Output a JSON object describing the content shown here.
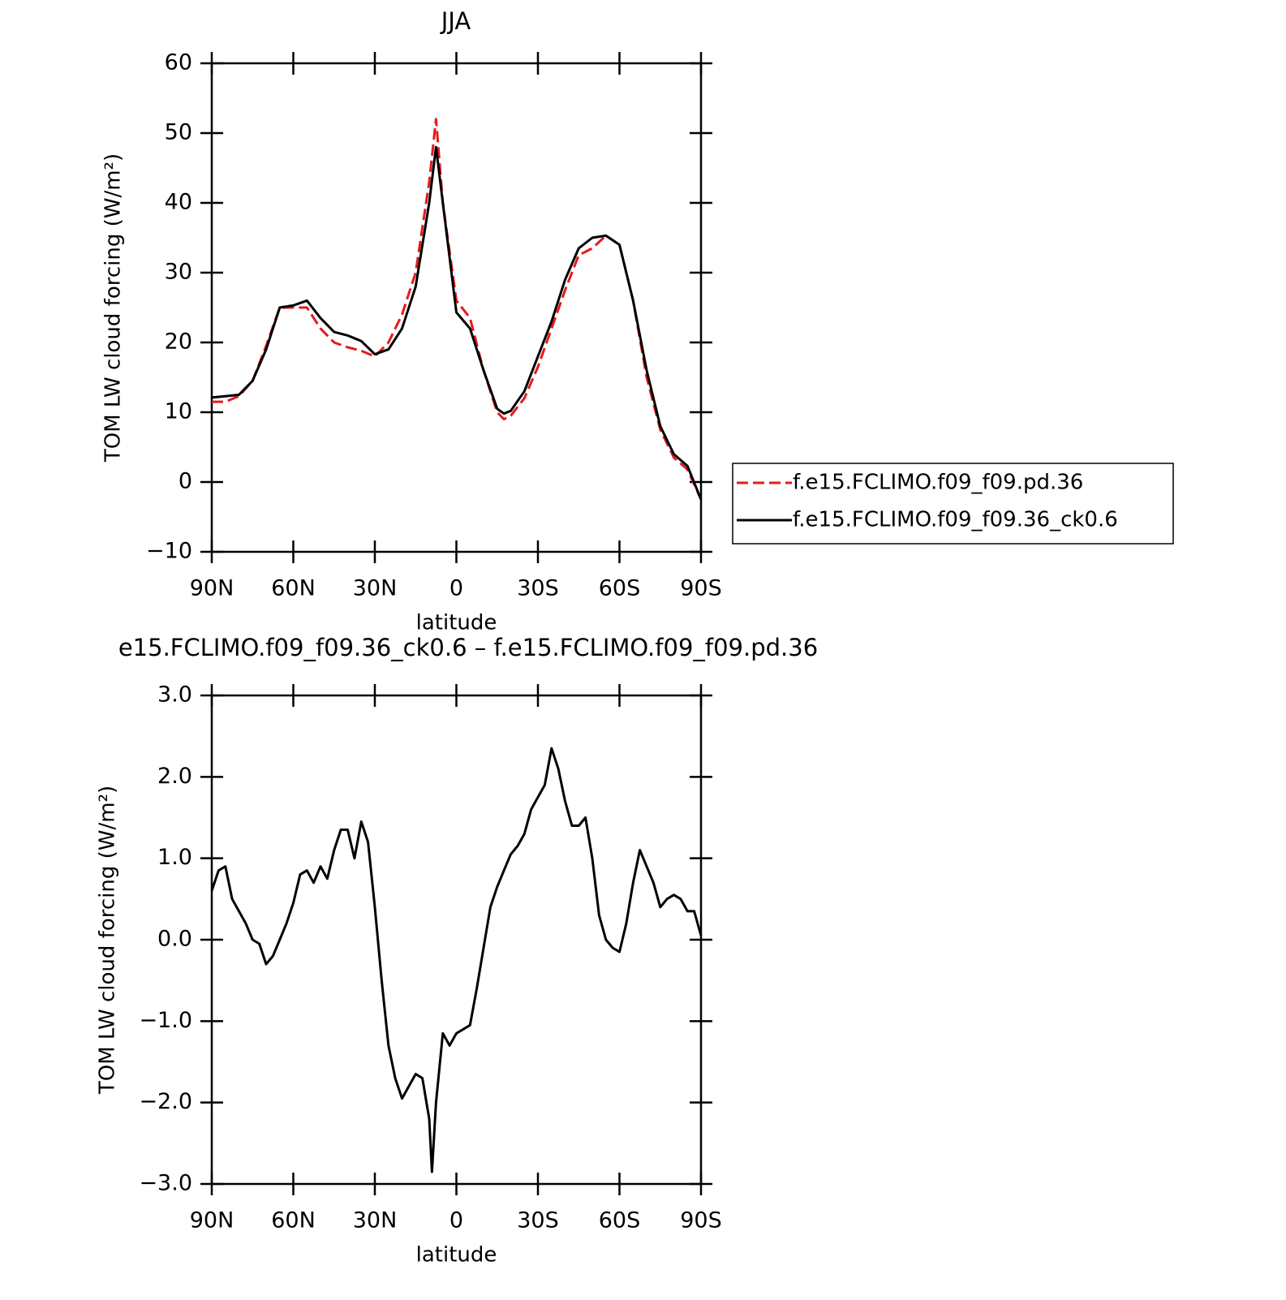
{
  "chart_data": [
    {
      "type": "line",
      "title": "JJA",
      "xlabel": "latitude",
      "ylabel": "TOM LW cloud forcing (W/m²)",
      "x": [
        90,
        85,
        80,
        75,
        70,
        65,
        60,
        55,
        50,
        45,
        40,
        35,
        30,
        25,
        20,
        15,
        10,
        7.5,
        5,
        0,
        -5,
        -10,
        -15,
        -17.5,
        -20,
        -25,
        -30,
        -35,
        -40,
        -45,
        -50,
        -55,
        -60,
        -65,
        -70,
        -75,
        -80,
        -85,
        -90
      ],
      "series": [
        {
          "name": "f.e15.FCLIMO.f09_f09.pd.36",
          "color": "#e41a1c",
          "style": "dashed",
          "values": [
            11.5,
            11.5,
            12.3,
            14.5,
            19.5,
            25,
            25,
            25,
            22,
            20,
            19.3,
            18.8,
            18,
            20,
            24,
            30,
            43,
            52,
            40,
            26,
            23.5,
            16,
            10,
            9,
            9.5,
            12,
            16.5,
            22,
            27.5,
            32.5,
            33.5,
            35.3,
            34,
            26,
            15,
            7.5,
            3.5,
            1.8,
            -2.5
          ]
        },
        {
          "name": "f.e15.FCLIMO.f09_f09.36_ck0.6",
          "color": "#000000",
          "style": "solid",
          "values": [
            12.1,
            12.3,
            12.5,
            14.5,
            19,
            25,
            25.3,
            26,
            23.5,
            21.5,
            21,
            20.2,
            18.3,
            19,
            22,
            28,
            40,
            48,
            40,
            24.3,
            22,
            16,
            10.5,
            9.8,
            10.2,
            13,
            18,
            23,
            29,
            33.5,
            35,
            35.3,
            34,
            26,
            16,
            8,
            4,
            2.3,
            -2.5
          ]
        }
      ],
      "xlim": [
        90,
        -90
      ],
      "xticks": [
        {
          "value": 90,
          "label": "90N"
        },
        {
          "value": 60,
          "label": "60N"
        },
        {
          "value": 30,
          "label": "30N"
        },
        0,
        {
          "value": -30,
          "label": "30S"
        },
        {
          "value": -60,
          "label": "60S"
        },
        {
          "value": -90,
          "label": "90S"
        }
      ],
      "ylim": [
        -10,
        60
      ],
      "yticks": [
        {
          "value": -10,
          "label": "−10"
        },
        0,
        10,
        20,
        30,
        40,
        50,
        60
      ],
      "legend": "right"
    },
    {
      "type": "line",
      "title": "e15.FCLIMO.f09_f09.36_ck0.6 – f.e15.FCLIMO.f09_f09.pd.36",
      "xlabel": "latitude",
      "ylabel": "TOM LW cloud forcing (W/m²)",
      "x": [
        90,
        87.5,
        85,
        82.5,
        80,
        77.5,
        75,
        72.5,
        70,
        67.5,
        65,
        62.5,
        60,
        57.5,
        55,
        52.5,
        50,
        47.5,
        45,
        42.5,
        40,
        37.5,
        35,
        32.5,
        30,
        27.5,
        25,
        22.5,
        20,
        17.5,
        15,
        12.5,
        10,
        9,
        7.5,
        5,
        2.5,
        0,
        -2.5,
        -5,
        -7.5,
        -10,
        -12.5,
        -15,
        -17.5,
        -20,
        -22.5,
        -25,
        -27.5,
        -30,
        -32.5,
        -35,
        -37.5,
        -40,
        -42.5,
        -45,
        -47.5,
        -50,
        -52.5,
        -55,
        -57.5,
        -60,
        -62.5,
        -65,
        -67.5,
        -70,
        -72.5,
        -75,
        -77.5,
        -80,
        -82.5,
        -85,
        -87.5,
        -90
      ],
      "values": [
        0.6,
        0.85,
        0.9,
        0.5,
        0.35,
        0.2,
        0.0,
        -0.05,
        -0.3,
        -0.2,
        0.0,
        0.2,
        0.45,
        0.8,
        0.85,
        0.7,
        0.9,
        0.75,
        1.1,
        1.35,
        1.35,
        1.0,
        1.45,
        1.2,
        0.4,
        -0.5,
        -1.3,
        -1.7,
        -1.95,
        -1.8,
        -1.65,
        -1.7,
        -2.2,
        -2.85,
        -2.0,
        -1.15,
        -1.3,
        -1.15,
        -1.1,
        -1.05,
        -0.6,
        -0.1,
        0.4,
        0.65,
        0.85,
        1.05,
        1.15,
        1.3,
        1.6,
        1.75,
        1.9,
        2.35,
        2.1,
        1.7,
        1.4,
        1.4,
        1.5,
        1.0,
        0.3,
        0.0,
        -0.1,
        -0.15,
        0.2,
        0.7,
        1.1,
        0.9,
        0.7,
        0.4,
        0.5,
        0.55,
        0.5,
        0.35,
        0.35,
        0.05
      ],
      "color": "#000000",
      "xlim": [
        90,
        -90
      ],
      "xticks": [
        {
          "value": 90,
          "label": "90N"
        },
        {
          "value": 60,
          "label": "60N"
        },
        {
          "value": 30,
          "label": "30N"
        },
        0,
        {
          "value": -30,
          "label": "30S"
        },
        {
          "value": -60,
          "label": "60S"
        },
        {
          "value": -90,
          "label": "90S"
        }
      ],
      "ylim": [
        -3,
        3
      ],
      "yticks": [
        {
          "value": -3,
          "label": "−3.0"
        },
        {
          "value": -2,
          "label": "−2.0"
        },
        {
          "value": -1,
          "label": "−1.0"
        },
        {
          "value": 0,
          "label": "0.0"
        },
        {
          "value": 1,
          "label": "1.0"
        },
        {
          "value": 2,
          "label": "2.0"
        },
        {
          "value": 3,
          "label": "3.0"
        }
      ]
    }
  ]
}
